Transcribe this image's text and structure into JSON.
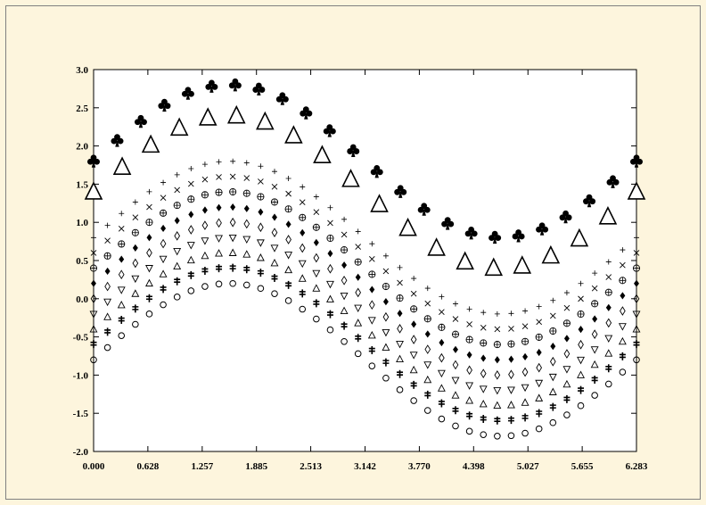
{
  "chart_data": {
    "type": "scatter",
    "xlim": [
      0.0,
      6.283
    ],
    "ylim": [
      -2.0,
      3.0
    ],
    "x_ticks": [
      "0.000",
      "0.628",
      "1.257",
      "1.885",
      "2.513",
      "3.142",
      "3.770",
      "4.398",
      "5.027",
      "5.655",
      "6.283"
    ],
    "y_ticks": [
      "3.0",
      "2.5",
      "2.0",
      "1.5",
      "1.0",
      "0.5",
      "0.0",
      "-0.5",
      "-1.0",
      "-1.5",
      "-2.0"
    ],
    "x_tick_values": [
      0.0,
      0.628,
      1.257,
      1.885,
      2.513,
      3.142,
      3.77,
      4.398,
      5.027,
      5.655,
      6.283
    ],
    "y_tick_values": [
      3.0,
      2.5,
      2.0,
      1.5,
      1.0,
      0.5,
      0.0,
      -0.5,
      -1.0,
      -1.5,
      -2.0
    ],
    "grid": false,
    "background_color": "#fdf5dd",
    "plot_background_color": "#ffffff",
    "series": [
      {
        "marker": "circle-open",
        "function": "sin(x) - 0.8",
        "points": 40
      },
      {
        "marker": "double-cross",
        "function": "sin(x) - 0.6",
        "points": 40
      },
      {
        "marker": "triangle-up-open",
        "function": "sin(x) - 0.4",
        "points": 40
      },
      {
        "marker": "triangle-down-open",
        "function": "sin(x) - 0.2",
        "points": 40
      },
      {
        "marker": "diamond-open",
        "function": "sin(x) + 0.0",
        "points": 40
      },
      {
        "marker": "diamond-filled",
        "function": "sin(x) + 0.2",
        "points": 40
      },
      {
        "marker": "circle-plus",
        "function": "sin(x) + 0.4",
        "points": 40
      },
      {
        "marker": "x-cross",
        "function": "sin(x) + 0.6",
        "points": 40
      },
      {
        "marker": "plus",
        "function": "sin(x) + 0.8",
        "points": 40
      },
      {
        "marker": "triangle-up-large",
        "function": "sin(x) + 1.4",
        "points": 20
      },
      {
        "marker": "club",
        "function": "sin(x) + 1.8",
        "points": 24
      }
    ]
  }
}
